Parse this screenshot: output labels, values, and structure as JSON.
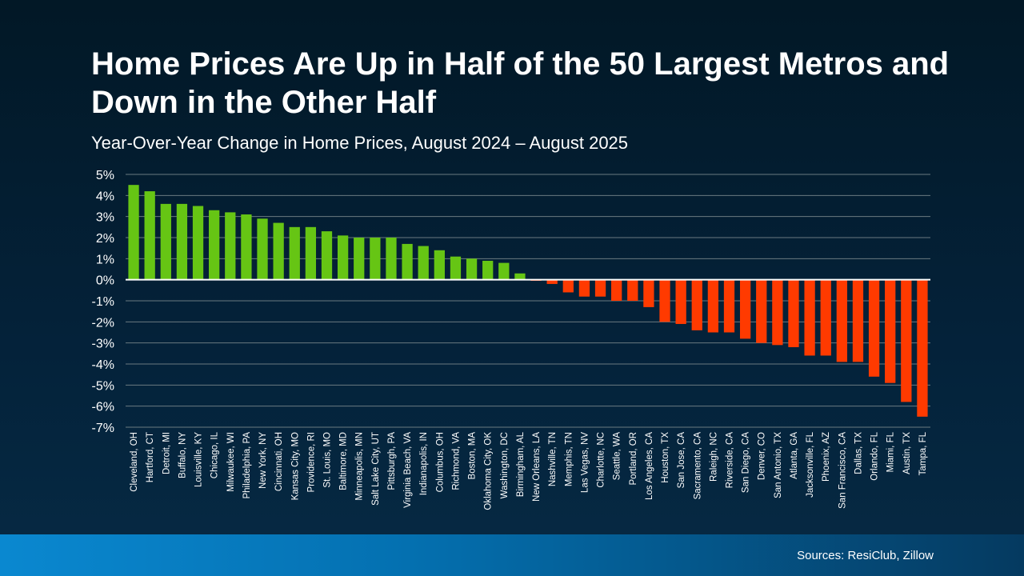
{
  "chart_data": {
    "type": "bar",
    "title": "Home Prices Are Up in Half of the 50 Largest Metros and Down in the Other Half",
    "subtitle": "Year-Over-Year Change in Home Prices, August 2024 – August 2025",
    "ylim": [
      -7,
      5
    ],
    "yticks": [
      "5%",
      "4%",
      "3%",
      "2%",
      "1%",
      "0%",
      "-1%",
      "-2%",
      "-3%",
      "-4%",
      "-5%",
      "-6%",
      "-7%"
    ],
    "ytick_values": [
      5,
      4,
      3,
      2,
      1,
      0,
      -1,
      -2,
      -3,
      -4,
      -5,
      -6,
      -7
    ],
    "grid": true,
    "colors": {
      "positive": "#66c514",
      "negative": "#ff3a00",
      "zero_line": "#ffffff",
      "grid": "#6a7a80"
    },
    "categories": [
      "Cleveland, OH",
      "Hartford, CT",
      "Detroit, MI",
      "Buffalo, NY",
      "Louisville, KY",
      "Chicago, IL",
      "Milwaukee, WI",
      "Philadelphia, PA",
      "New York, NY",
      "Cincinnati, OH",
      "Kansas City, MO",
      "Providence, RI",
      "St. Louis, MO",
      "Baltimore, MD",
      "Minneapolis, MN",
      "Salt Lake City, UT",
      "Pittsburgh, PA",
      "Virginia Beach, VA",
      "Indianapolis, IN",
      "Columbus, OH",
      "Richmond, VA",
      "Boston, MA",
      "Oklahoma City, OK",
      "Washington, DC",
      "Birmingham, AL",
      "New Orleans, LA",
      "Nashville, TN",
      "Memphis, TN",
      "Las Vegas, NV",
      "Charlotte, NC",
      "Seattle, WA",
      "Portland, OR",
      "Los Angeles, CA",
      "Houston, TX",
      "San Jose, CA",
      "Sacramento, CA",
      "Raleigh, NC",
      "Riverside, CA",
      "San Diego, CA",
      "Denver, CO",
      "San Antonio, TX",
      "Atlanta, GA",
      "Jacksonville, FL",
      "Phoenix, AZ",
      "San Francisco, CA",
      "Dallas, TX",
      "Orlando, FL",
      "Miami, FL",
      "Austin, TX",
      "Tampa, FL"
    ],
    "values": [
      4.5,
      4.2,
      3.6,
      3.6,
      3.5,
      3.3,
      3.2,
      3.1,
      2.9,
      2.7,
      2.5,
      2.5,
      2.3,
      2.1,
      2.0,
      2.0,
      2.0,
      1.7,
      1.6,
      1.4,
      1.1,
      1.0,
      0.9,
      0.8,
      0.3,
      -0.05,
      -0.2,
      -0.6,
      -0.8,
      -0.8,
      -1.0,
      -1.0,
      -1.3,
      -2.0,
      -2.1,
      -2.4,
      -2.5,
      -2.5,
      -2.8,
      -3.0,
      -3.1,
      -3.2,
      -3.6,
      -3.6,
      -3.9,
      -3.9,
      -4.6,
      -4.9,
      -5.8,
      -6.5
    ]
  },
  "footer": {
    "source": "Sources: ResiClub, Zillow"
  }
}
